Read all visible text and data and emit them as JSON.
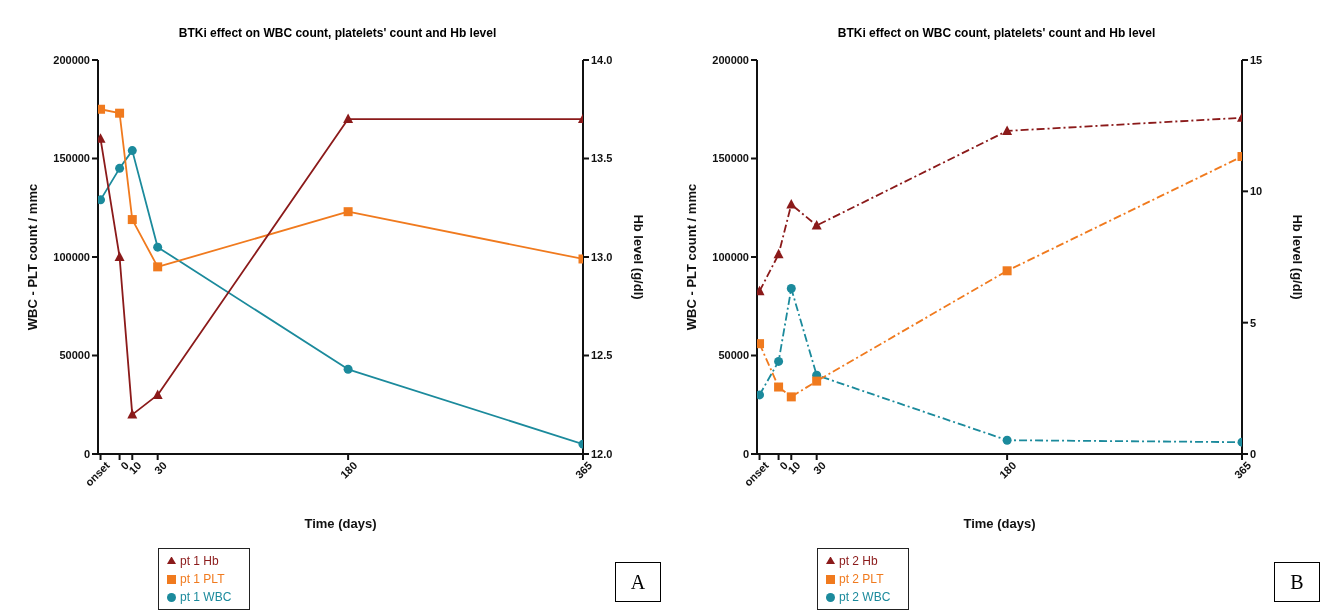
{
  "chart_data": [
    {
      "type": "line",
      "title": "BTKi effect on WBC count, platelets' count and Hb level",
      "xlabel": "Time (days)",
      "ylabel": "WBC - PLT count / mmc",
      "y2label": "Hb level (g/dl)",
      "x": [
        -15,
        0,
        10,
        30,
        180,
        365
      ],
      "xlim": [
        -17,
        365
      ],
      "xticks": [
        {
          "value": -15,
          "label": "onset"
        },
        0,
        10,
        30,
        180,
        365
      ],
      "ylim": [
        0,
        200000
      ],
      "yticks": [
        0,
        50000,
        100000,
        150000,
        200000
      ],
      "y2lim": [
        12,
        14
      ],
      "y2ticks": [
        {
          "value": 12,
          "label": "12.0"
        },
        {
          "value": 12.5,
          "label": "12.5"
        },
        {
          "value": 13,
          "label": "13.0"
        },
        {
          "value": 13.5,
          "label": "13.5"
        },
        {
          "value": 14,
          "label": "14.0"
        }
      ],
      "line_style": "solid",
      "legend": "bottom",
      "grid": false,
      "annotations": [
        "A"
      ],
      "series": [
        {
          "name": "pt 1 WBC",
          "color": "#1b8a9c",
          "marker": "circle",
          "values": [
            129000,
            145000,
            154000,
            105000,
            43000,
            5000
          ]
        },
        {
          "name": "pt 1 PLT",
          "color": "#f07a1e",
          "marker": "square",
          "values": [
            175000,
            173000,
            119000,
            95000,
            123000,
            99000
          ]
        },
        {
          "name": "pt 1 Hb",
          "color": "#8b1a1a",
          "marker": "triangle",
          "axis": "y2",
          "values": [
            13.6,
            13.0,
            12.2,
            12.3,
            13.7,
            13.7
          ]
        }
      ]
    },
    {
      "type": "line",
      "title": "BTKi effect on WBC count, platelets' count and Hb level",
      "xlabel": "Time (days)",
      "ylabel": "WBC - PLT count / mmc",
      "y2label": "Hb level (g/dl)",
      "x": [
        -15,
        0,
        10,
        30,
        180,
        365
      ],
      "xlim": [
        -17,
        365
      ],
      "xticks": [
        {
          "value": -15,
          "label": "onset"
        },
        0,
        10,
        30,
        180,
        365
      ],
      "ylim": [
        0,
        200000
      ],
      "yticks": [
        0,
        50000,
        100000,
        150000,
        200000
      ],
      "y2lim": [
        0,
        15
      ],
      "y2ticks": [
        0,
        5,
        10,
        15
      ],
      "line_style": "dashed",
      "legend": "bottom",
      "grid": false,
      "annotations": [
        "B"
      ],
      "series": [
        {
          "name": "pt 2 WBC",
          "color": "#1b8a9c",
          "marker": "circle",
          "values": [
            30000,
            47000,
            84000,
            40000,
            7000,
            6000
          ]
        },
        {
          "name": "pt 2 PLT",
          "color": "#f07a1e",
          "marker": "square",
          "values": [
            56000,
            34000,
            29000,
            37000,
            93000,
            151000
          ]
        },
        {
          "name": "pt 2 Hb",
          "color": "#8b1a1a",
          "marker": "triangle",
          "axis": "y2",
          "values": [
            6.2,
            7.6,
            9.5,
            8.7,
            12.3,
            12.8
          ]
        }
      ]
    }
  ]
}
